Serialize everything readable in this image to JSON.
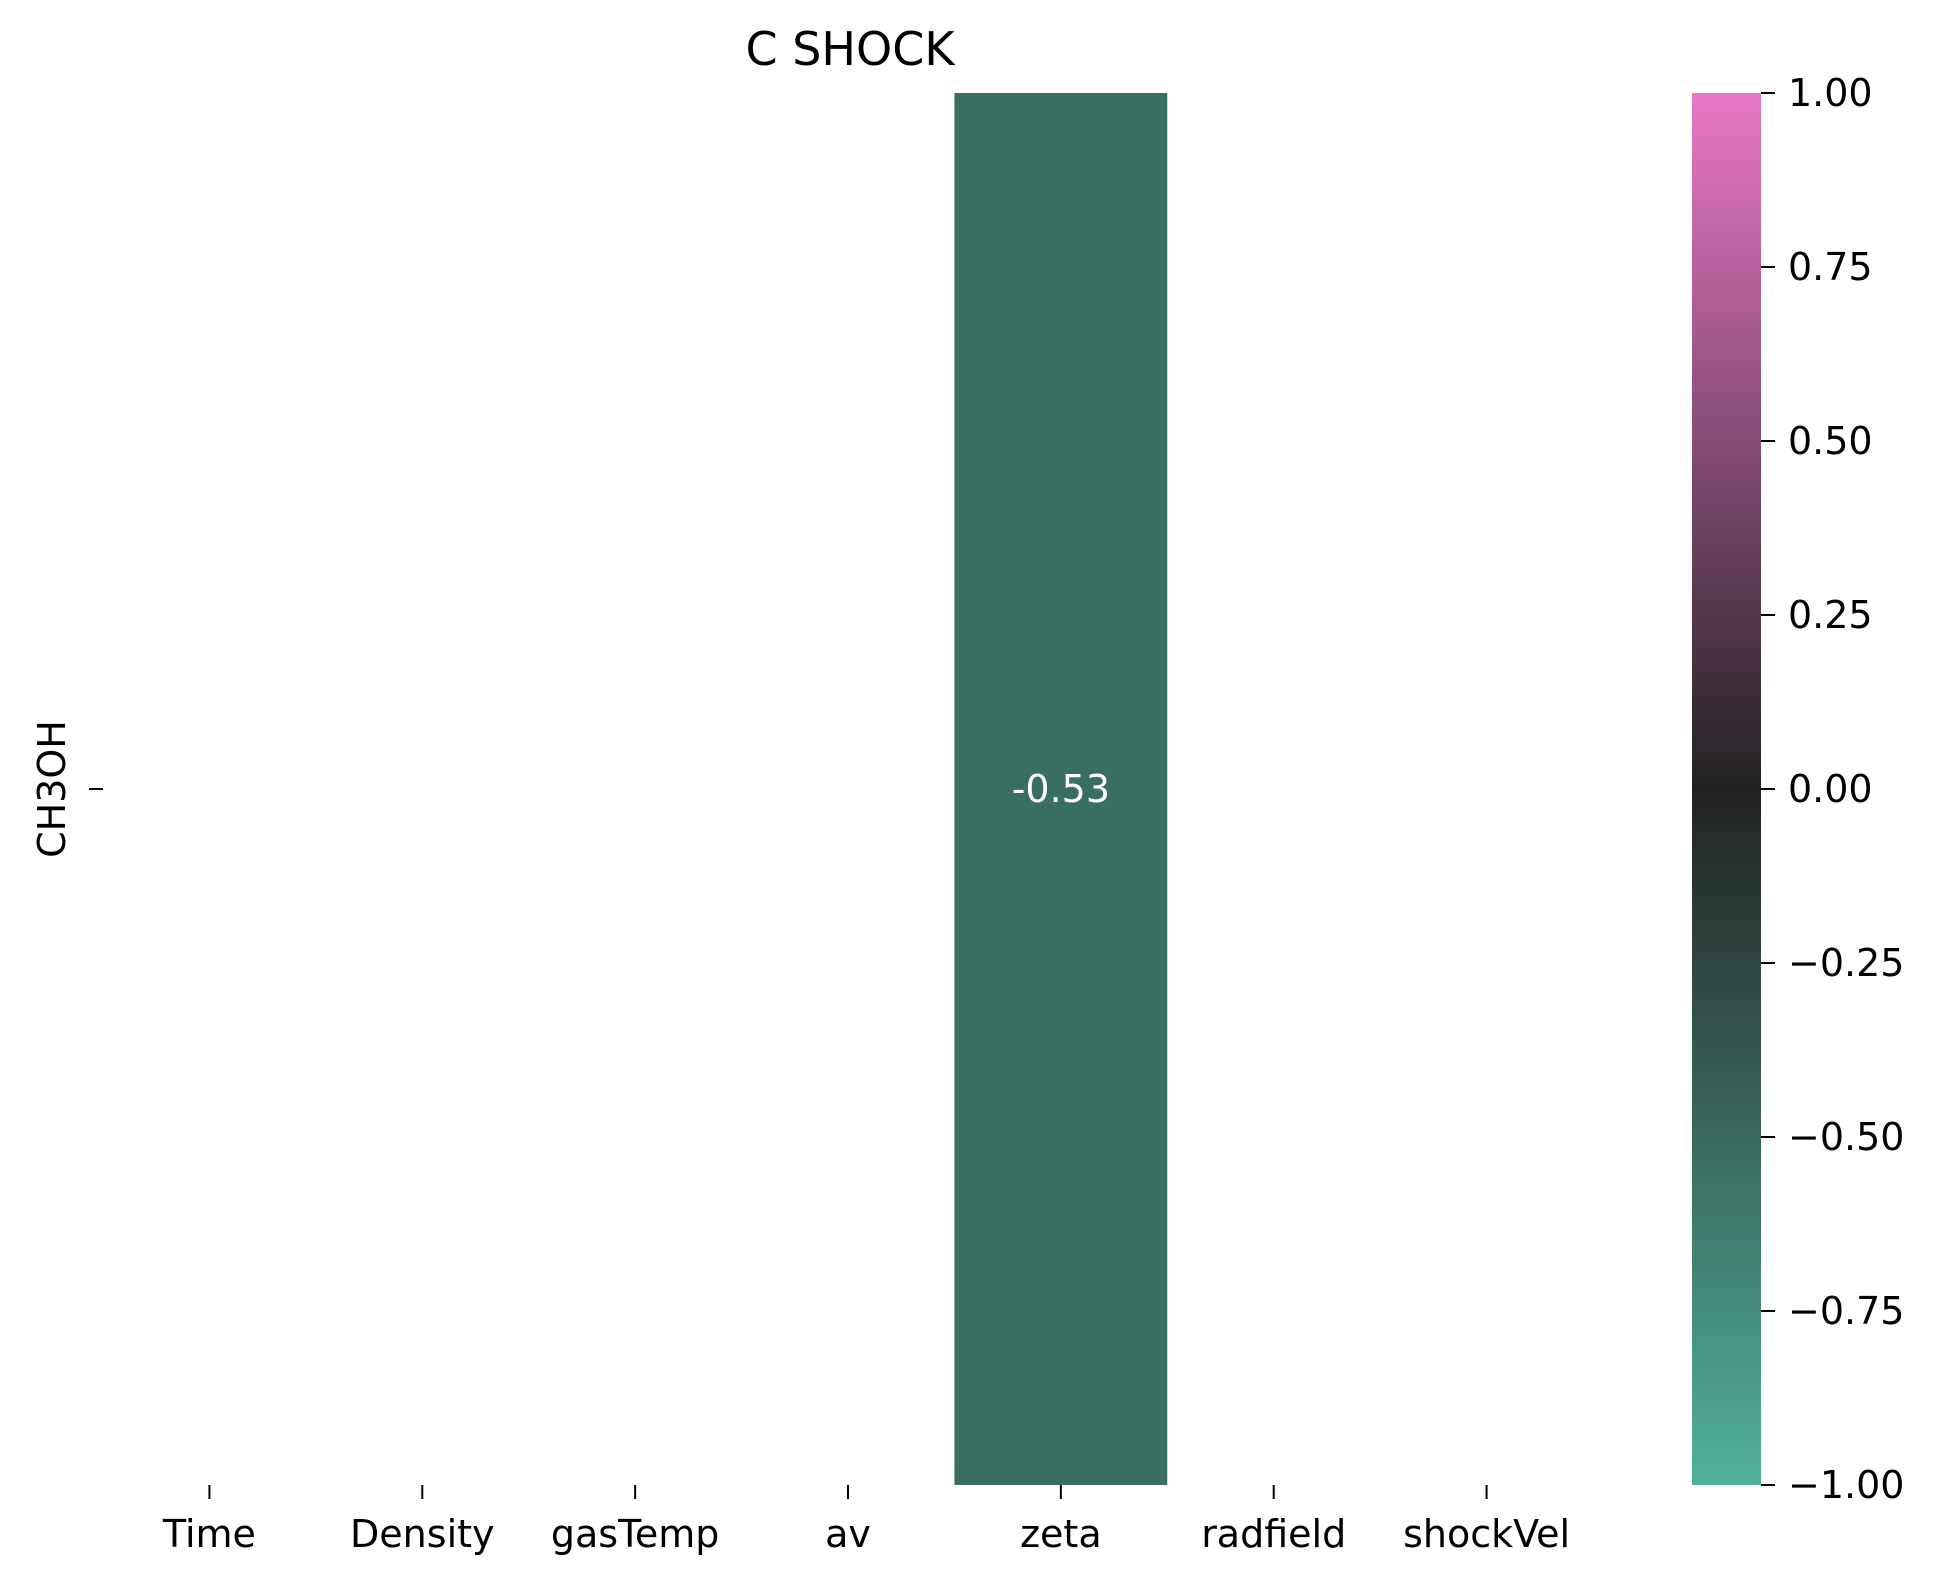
{
  "chart_data": {
    "type": "heatmap",
    "title": "C SHOCK",
    "rows": [
      "CH3OH"
    ],
    "columns": [
      "Time",
      "Density",
      "gasTemp",
      "av",
      "zeta",
      "radfield",
      "shockVel"
    ],
    "values": [
      [
        null,
        null,
        null,
        null,
        -0.53,
        null,
        null
      ]
    ],
    "cell_labels": [
      [
        "",
        "",
        "",
        "",
        "-0.53",
        "",
        ""
      ]
    ],
    "colorbar": {
      "range": [
        -1.0,
        1.0
      ],
      "ticks": [
        "1.00",
        "0.75",
        "0.50",
        "0.25",
        "0.00",
        "−0.25",
        "−0.50",
        "−0.75",
        "−1.00"
      ],
      "colors": {
        "min": "#52b09b",
        "mid": "#222222",
        "max": "#e877c7"
      }
    },
    "cell_color": "#3b6e62",
    "cell_text_color": "#ffffff"
  }
}
